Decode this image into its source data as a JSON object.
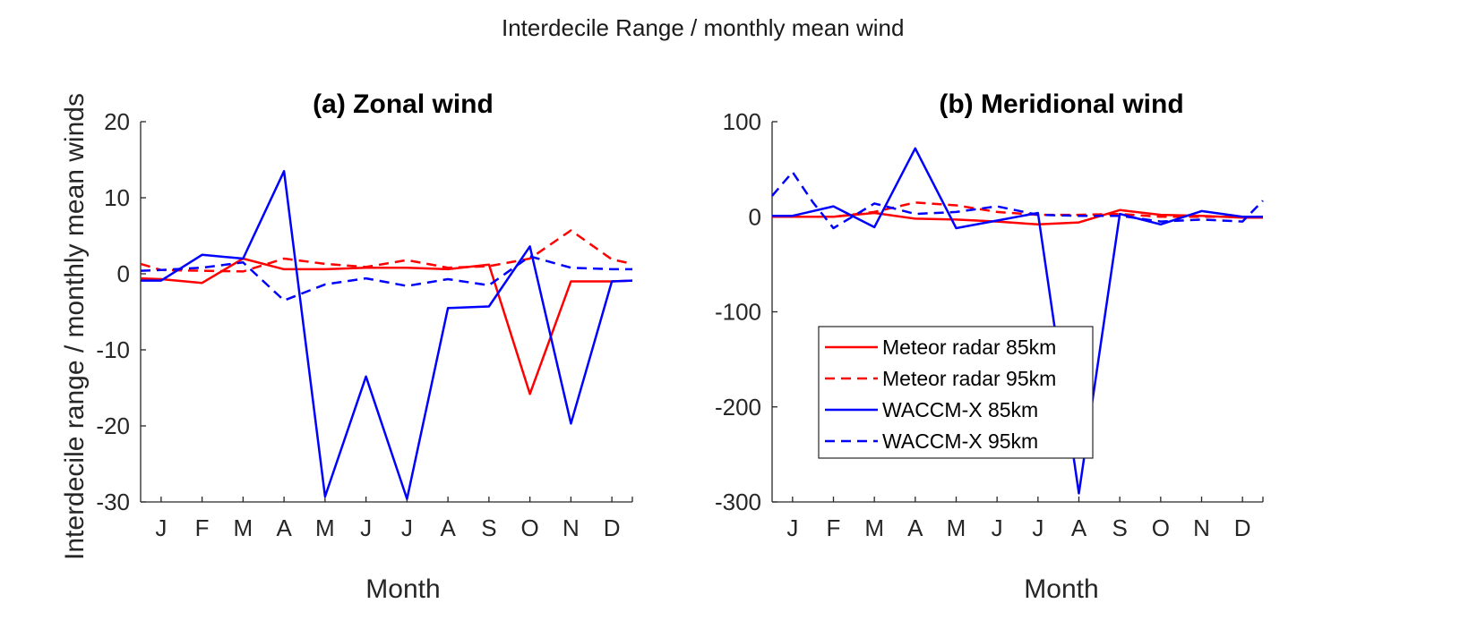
{
  "figure": {
    "suptitle": "Interdecile Range / monthly mean wind",
    "ylabel": "Interdecile range / monthly mean winds"
  },
  "legend": [
    {
      "label": "Meteor radar 85km",
      "color": "#ff0000",
      "dash": "solid"
    },
    {
      "label": "Meteor radar 95km",
      "color": "#ff0000",
      "dash": "dashed"
    },
    {
      "label": "WACCM-X 85km",
      "color": "#0000ff",
      "dash": "solid"
    },
    {
      "label": "WACCM-X 95km",
      "color": "#0000ff",
      "dash": "dashed"
    }
  ],
  "chart_data": [
    {
      "type": "line",
      "title": "(a) Zonal wind",
      "xlabel": "Month",
      "ylabel": "Interdecile range / monthly mean winds",
      "categories": [
        "J",
        "F",
        "M",
        "A",
        "M",
        "J",
        "J",
        "A",
        "S",
        "O",
        "N",
        "D"
      ],
      "xlim": [
        0.5,
        12.5
      ],
      "ylim": [
        -30,
        20
      ],
      "yticks": [
        -30,
        -20,
        -10,
        0,
        10,
        20
      ],
      "yticklabels": [
        "-30",
        "-20",
        "-10",
        "0",
        "10",
        "20"
      ],
      "series": [
        {
          "name": "Meteor radar 85km",
          "color": "#ff0000",
          "dash": "solid",
          "x": [
            0.5,
            1,
            2,
            3,
            4,
            5,
            6,
            7,
            8,
            9,
            10,
            11,
            12,
            12.5
          ],
          "values": [
            -0.6,
            -0.7,
            -1.2,
            2.0,
            0.6,
            0.6,
            0.8,
            0.8,
            0.6,
            1.2,
            -15.8,
            -1.0,
            -1.0,
            -0.9
          ]
        },
        {
          "name": "Meteor radar 95km",
          "color": "#ff0000",
          "dash": "dashed",
          "x": [
            0.5,
            1,
            2,
            3,
            4,
            5,
            6,
            7,
            8,
            9,
            10,
            11,
            12,
            12.5
          ],
          "values": [
            1.3,
            0.5,
            0.4,
            0.3,
            2.0,
            1.3,
            0.9,
            1.8,
            0.8,
            1.0,
            2.0,
            5.7,
            1.9,
            1.3
          ]
        },
        {
          "name": "WACCM-X 85km",
          "color": "#0000ff",
          "dash": "solid",
          "x": [
            0.5,
            1,
            2,
            3,
            4,
            5,
            6,
            7,
            8,
            9,
            10,
            11,
            12,
            12.5
          ],
          "values": [
            -0.9,
            -0.9,
            2.5,
            2.0,
            13.5,
            -29.3,
            -13.5,
            -29.6,
            -4.5,
            -4.3,
            3.6,
            -19.7,
            -1.0,
            -0.9
          ]
        },
        {
          "name": "WACCM-X 95km",
          "color": "#0000ff",
          "dash": "dashed",
          "x": [
            0.5,
            1,
            2,
            3,
            4,
            5,
            6,
            7,
            8,
            9,
            10,
            11,
            12,
            12.5
          ],
          "values": [
            0.4,
            0.5,
            0.8,
            1.5,
            -3.5,
            -1.4,
            -0.6,
            -1.6,
            -0.7,
            -1.5,
            2.3,
            0.8,
            0.6,
            0.6
          ]
        }
      ]
    },
    {
      "type": "line",
      "title": "(b) Meridional wind",
      "xlabel": "Month",
      "categories": [
        "J",
        "F",
        "M",
        "A",
        "M",
        "J",
        "J",
        "A",
        "S",
        "O",
        "N",
        "D"
      ],
      "xlim": [
        0.5,
        12.5
      ],
      "ylim": [
        -300,
        100
      ],
      "yticks": [
        -300,
        -200,
        -100,
        0,
        100
      ],
      "yticklabels": [
        "-300",
        "-200",
        "-100",
        "0",
        "100"
      ],
      "legend_position": "lower-left",
      "series": [
        {
          "name": "Meteor radar 85km",
          "color": "#ff0000",
          "dash": "solid",
          "x": [
            0.5,
            1,
            2,
            3,
            4,
            5,
            6,
            7,
            8,
            9,
            10,
            11,
            12,
            12.5
          ],
          "values": [
            0,
            0,
            0,
            4,
            -2,
            -3,
            -5,
            -8,
            -6,
            7,
            2,
            1,
            -1,
            -1
          ]
        },
        {
          "name": "Meteor radar 95km",
          "color": "#ff0000",
          "dash": "dashed",
          "x": [
            0.5,
            1,
            2,
            3,
            4,
            5,
            6,
            7,
            8,
            9,
            10,
            11,
            12,
            12.5
          ],
          "values": [
            0,
            0,
            0,
            5,
            15,
            12,
            5,
            2,
            2,
            3,
            0,
            0,
            0,
            0
          ]
        },
        {
          "name": "WACCM-X 85km",
          "color": "#0000ff",
          "dash": "solid",
          "x": [
            0.5,
            1,
            2,
            3,
            4,
            5,
            6,
            7,
            8,
            9,
            10,
            11,
            12,
            12.5
          ],
          "values": [
            1,
            1,
            11,
            -11,
            72,
            -12,
            -4,
            4,
            -291,
            3,
            -8,
            6,
            0,
            0
          ]
        },
        {
          "name": "WACCM-X 95km",
          "color": "#0000ff",
          "dash": "dashed",
          "x": [
            0.5,
            1,
            1.5,
            2,
            3,
            4,
            5,
            6,
            7,
            8,
            9,
            10,
            11,
            12,
            12.5
          ],
          "values": [
            22,
            47,
            15,
            -12,
            14,
            3,
            5,
            11,
            2,
            1,
            1,
            -5,
            -3,
            -5,
            17
          ]
        }
      ]
    }
  ]
}
